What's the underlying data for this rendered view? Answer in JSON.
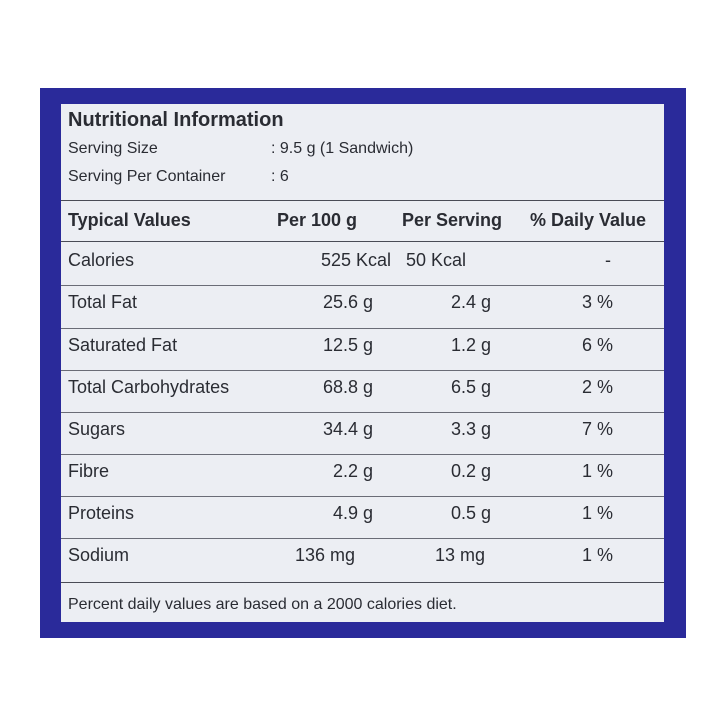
{
  "label": {
    "title": "Nutritional Information",
    "serving_size": {
      "label": "Serving Size",
      "value": ": 9.5 g (1 Sandwich)"
    },
    "servings_per_container": {
      "label": "Serving Per Container",
      "value": ": 6"
    },
    "columns": [
      "Typical Values",
      "Per 100 g",
      "Per Serving",
      "% Daily Value"
    ],
    "rows": [
      {
        "name": "Calories",
        "per100": "525 Kcal",
        "serving": "50 Kcal",
        "dv": "-"
      },
      {
        "name": "Total Fat",
        "per100": "25.6 g",
        "serving": "2.4 g",
        "dv": "3 %"
      },
      {
        "name": "Saturated Fat",
        "per100": "12.5 g",
        "serving": "1.2 g",
        "dv": "6 %"
      },
      {
        "name": "Total Carbohydrates",
        "per100": "68.8 g",
        "serving": "6.5 g",
        "dv": "2 %"
      },
      {
        "name": "Sugars",
        "per100": "34.4 g",
        "serving": "3.3 g",
        "dv": "7 %"
      },
      {
        "name": "Fibre",
        "per100": "2.2 g",
        "serving": "0.2 g",
        "dv": "1 %"
      },
      {
        "name": "Proteins",
        "per100": "4.9 g",
        "serving": "0.5 g",
        "dv": "1 %"
      },
      {
        "name": "Sodium",
        "per100": "136 mg",
        "serving": "13 mg",
        "dv": "1 %"
      }
    ],
    "footnote": "Percent daily values are based on a 2000 calories diet."
  },
  "colors": {
    "frame": "#2a2a9a",
    "panel": "#eceef3",
    "text": "#2a2c33"
  }
}
